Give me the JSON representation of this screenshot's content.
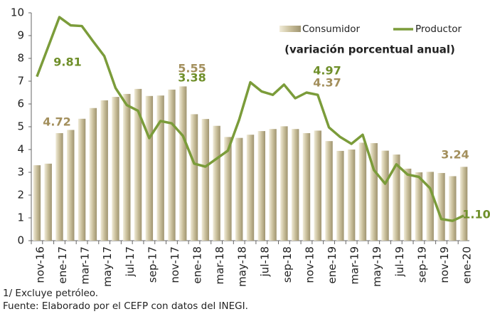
{
  "chart_data": {
    "type": "bar-line",
    "subtitle": "(variación porcentual anual)",
    "notes": [
      "1/ Excluye petróleo.",
      "Fuente: Elaborado por el CEFP con datos del INEGI."
    ],
    "categories": [
      "nov-16",
      null,
      "ene-17",
      null,
      "mar-17",
      null,
      "may-17",
      null,
      "jul-17",
      null,
      "sep-17",
      null,
      "nov-17",
      null,
      "ene-18",
      null,
      "mar-18",
      null,
      "may-18",
      null,
      "jul-18",
      null,
      "sep-18",
      null,
      "nov-18",
      null,
      "ene-19",
      null,
      "mar-19",
      null,
      "may-19",
      null,
      "jul-19",
      null,
      "sep-19",
      null,
      "nov-19",
      null,
      "ene-20"
    ],
    "series": [
      {
        "name": "Consumidor",
        "type": "bar",
        "color": "#c9bf9b",
        "values": [
          3.31,
          3.38,
          4.72,
          4.86,
          5.35,
          5.82,
          6.16,
          6.31,
          6.44,
          6.66,
          6.35,
          6.37,
          6.63,
          6.77,
          5.55,
          5.34,
          5.04,
          4.55,
          4.51,
          4.65,
          4.81,
          4.9,
          5.02,
          4.9,
          4.72,
          4.83,
          4.37,
          3.94,
          4.0,
          4.3,
          4.28,
          3.95,
          3.78,
          3.16,
          3.0,
          3.02,
          2.97,
          2.83,
          3.24
        ],
        "value_labels": [
          null,
          null,
          "4.72",
          null,
          null,
          null,
          null,
          null,
          null,
          null,
          null,
          null,
          null,
          null,
          "5.55",
          null,
          null,
          null,
          null,
          null,
          null,
          null,
          null,
          null,
          null,
          null,
          "4.37",
          null,
          null,
          null,
          null,
          null,
          null,
          null,
          null,
          null,
          null,
          null,
          "3.24"
        ],
        "label_color": "#a38f5c"
      },
      {
        "name": "Productor",
        "type": "line",
        "color": "#7b9c3a",
        "values": [
          7.2,
          8.5,
          9.81,
          9.45,
          9.42,
          8.75,
          8.1,
          6.7,
          5.95,
          5.7,
          4.5,
          5.25,
          5.15,
          4.6,
          3.38,
          3.25,
          3.6,
          3.95,
          5.3,
          6.95,
          6.55,
          6.4,
          6.85,
          6.25,
          6.5,
          6.4,
          4.97,
          4.55,
          4.25,
          4.65,
          3.1,
          2.5,
          3.35,
          2.9,
          2.8,
          2.3,
          0.95,
          0.87,
          1.1
        ],
        "value_labels": [
          null,
          null,
          "9.81",
          null,
          null,
          null,
          null,
          null,
          null,
          null,
          null,
          null,
          null,
          null,
          "3.38",
          null,
          null,
          null,
          null,
          null,
          null,
          null,
          null,
          null,
          null,
          null,
          "4.97",
          null,
          null,
          null,
          null,
          null,
          null,
          null,
          null,
          null,
          null,
          null,
          "1.10"
        ],
        "label_color": "#6f8f2a"
      }
    ],
    "ylim": [
      0,
      10
    ],
    "yticks": [
      0,
      1,
      2,
      3,
      4,
      5,
      6,
      7,
      8,
      9,
      10
    ],
    "grid": false
  }
}
